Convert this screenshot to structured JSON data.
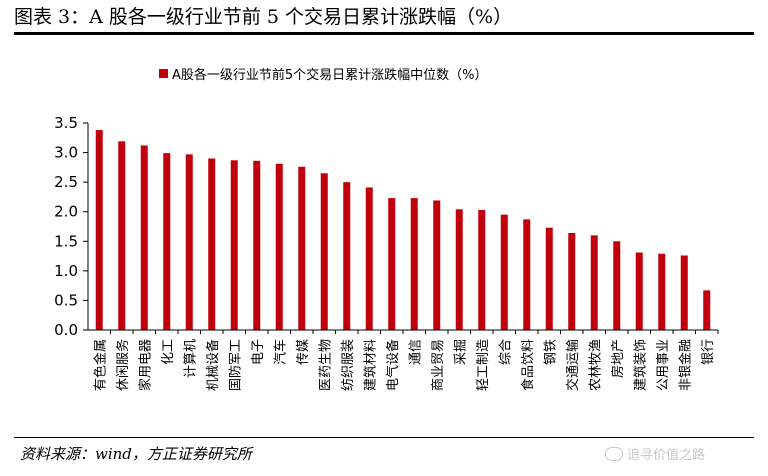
{
  "figure_title": "图表 3：A 股各一级行业节前 5 个交易日累计涨跌幅（%）",
  "source_note": "资料来源：wind，方正证券研究所",
  "watermark": "追寻价值之路",
  "colors": {
    "bar": "#c0000c",
    "axis": "#000000"
  },
  "chart_data": {
    "type": "bar",
    "legend": "A股各一级行业节前5个交易日累计涨跌幅中位数（%）",
    "legend_position": "top",
    "grid": false,
    "ylim": [
      0,
      3.5
    ],
    "yticks": [
      "0.0",
      "0.5",
      "1.0",
      "1.5",
      "2.0",
      "2.5",
      "3.0",
      "3.5"
    ],
    "categories": [
      "有色金属",
      "休闲服务",
      "家用电器",
      "化工",
      "计算机",
      "机械设备",
      "国防军工",
      "电子",
      "汽车",
      "传媒",
      "医药生物",
      "纺织服装",
      "建筑材料",
      "电气设备",
      "通信",
      "商业贸易",
      "采掘",
      "轻工制造",
      "综合",
      "食品饮料",
      "钢铁",
      "交通运输",
      "农林牧渔",
      "房地产",
      "建筑装饰",
      "公用事业",
      "非银金融",
      "银行"
    ],
    "values": [
      3.38,
      3.19,
      3.12,
      2.99,
      2.97,
      2.9,
      2.87,
      2.86,
      2.81,
      2.76,
      2.65,
      2.5,
      2.41,
      2.23,
      2.23,
      2.19,
      2.04,
      2.03,
      1.95,
      1.87,
      1.73,
      1.64,
      1.6,
      1.5,
      1.31,
      1.29,
      1.26,
      0.67
    ]
  }
}
